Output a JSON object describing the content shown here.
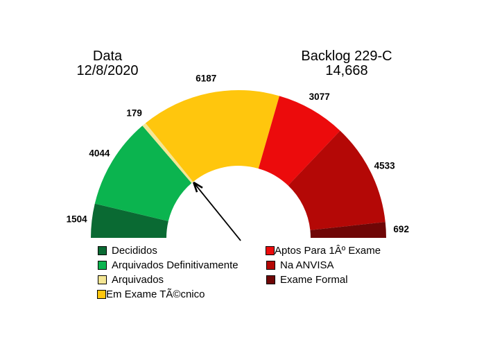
{
  "chart_data": {
    "type": "pie",
    "variant": "half-donut-gauge",
    "left_title": {
      "line1": "Data",
      "line2": "12/8/2020"
    },
    "right_title": {
      "line1": "Backlog 229-C",
      "line2": "14,668"
    },
    "segments": [
      {
        "label": "Decididos",
        "value": 1504,
        "color": "#0a6a33"
      },
      {
        "label": "Arquivados Definitivamente",
        "value": 4044,
        "color": "#0bb44f"
      },
      {
        "label": "Arquivados",
        "value": 179,
        "color": "#f4e694"
      },
      {
        "label": "Em Exame TÃ©cnico",
        "value": 6187,
        "color": "#ffc60d"
      },
      {
        "label": "Aptos Para 1Âº Exame",
        "value": 3077,
        "color": "#ec0b0c"
      },
      {
        "label": "Na ANVISA",
        "value": 4533,
        "color": "#b40806"
      },
      {
        "label": "Exame Formal",
        "value": 692,
        "color": "#6f0606"
      }
    ],
    "value_labels": [
      "1504",
      "4044",
      "179",
      "6187",
      "3077",
      "4533",
      "692"
    ],
    "legend_split_index": 4,
    "legend_tight_rows": [
      3,
      4
    ],
    "arrow": {
      "points_to_boundary_after": "Arquivados"
    },
    "angle_span_degrees": 180,
    "legend_position": "bottom-two-columns",
    "grid": "off",
    "text_color": "#000000",
    "background": "#ffffff"
  }
}
